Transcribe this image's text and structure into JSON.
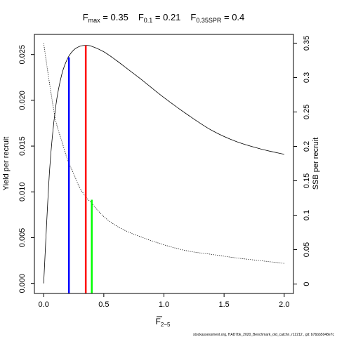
{
  "chart_data": {
    "type": "line",
    "title": {
      "fmax": {
        "main": "F",
        "sub": "max",
        "rest": " = 0.35"
      },
      "f01": {
        "main": "F",
        "sub": "0.1",
        "rest": " = 0.21"
      },
      "fspr": {
        "main": "F",
        "sub": "0.35SPR",
        "rest": " = 0.4"
      }
    },
    "xlabel": {
      "main": "F",
      "sub": "2−5"
    },
    "ylabel_left": "Yield per recruit",
    "ylabel_right": "SSB per recruit",
    "footer": "stockassessment.org, HAD7bk_2020_Benchmark_old_catchn, r12212 , git: b7bbb5048e7c",
    "xlim": [
      -0.077,
      2.077
    ],
    "ylim_left": [
      -0.0011,
      0.0272
    ],
    "ylim_right": [
      -0.0137,
      0.3627
    ],
    "x_ticks": [
      "0.0",
      "0.5",
      "1.0",
      "1.5",
      "2.0"
    ],
    "x_tick_values": [
      0,
      0.5,
      1.0,
      1.5,
      2.0
    ],
    "y_left_ticks": [
      "0.000",
      "0.005",
      "0.010",
      "0.015",
      "0.020",
      "0.025"
    ],
    "y_left_tick_values": [
      0,
      0.005,
      0.01,
      0.015,
      0.02,
      0.025
    ],
    "y_right_ticks": [
      "0",
      "0.05",
      "0.1",
      "0.15",
      "0.2",
      "0.25",
      "0.3",
      "0.35"
    ],
    "y_right_tick_values": [
      0,
      0.05,
      0.1,
      0.15,
      0.2,
      0.25,
      0.3,
      0.35
    ],
    "series": [
      {
        "axis": "left",
        "style": "solid",
        "x": [
          0,
          0.05,
          0.1,
          0.15,
          0.2,
          0.25,
          0.3,
          0.35,
          0.4,
          0.5,
          0.6,
          0.7,
          0.8,
          1.0,
          1.2,
          1.4,
          1.6,
          1.8,
          2.0
        ],
        "y": [
          0.0,
          0.0125,
          0.0193,
          0.0228,
          0.0246,
          0.0255,
          0.0259,
          0.026,
          0.0259,
          0.0253,
          0.0244,
          0.0234,
          0.0224,
          0.0203,
          0.0184,
          0.0167,
          0.0155,
          0.0147,
          0.0141
        ]
      },
      {
        "axis": "right",
        "style": "dotted",
        "x": [
          0,
          0.05,
          0.1,
          0.15,
          0.2,
          0.25,
          0.3,
          0.35,
          0.4,
          0.5,
          0.6,
          0.7,
          0.8,
          1.0,
          1.2,
          1.4,
          1.6,
          1.8,
          2.0
        ],
        "y": [
          0.35,
          0.29,
          0.238,
          0.208,
          0.18,
          0.16,
          0.14,
          0.127,
          0.117,
          0.098,
          0.085,
          0.076,
          0.069,
          0.057,
          0.048,
          0.043,
          0.038,
          0.034,
          0.03
        ]
      }
    ],
    "reference_lines": [
      {
        "name": "F0.1",
        "x": 0.21,
        "y": 0.0247,
        "axis": "left",
        "color": "#0000ff"
      },
      {
        "name": "Fmax",
        "x": 0.35,
        "y": 0.026,
        "axis": "left",
        "color": "#ff0000"
      },
      {
        "name": "F0.35SPR",
        "x": 0.4,
        "y": 0.1225,
        "axis": "right",
        "color": "#00ff00"
      }
    ]
  }
}
